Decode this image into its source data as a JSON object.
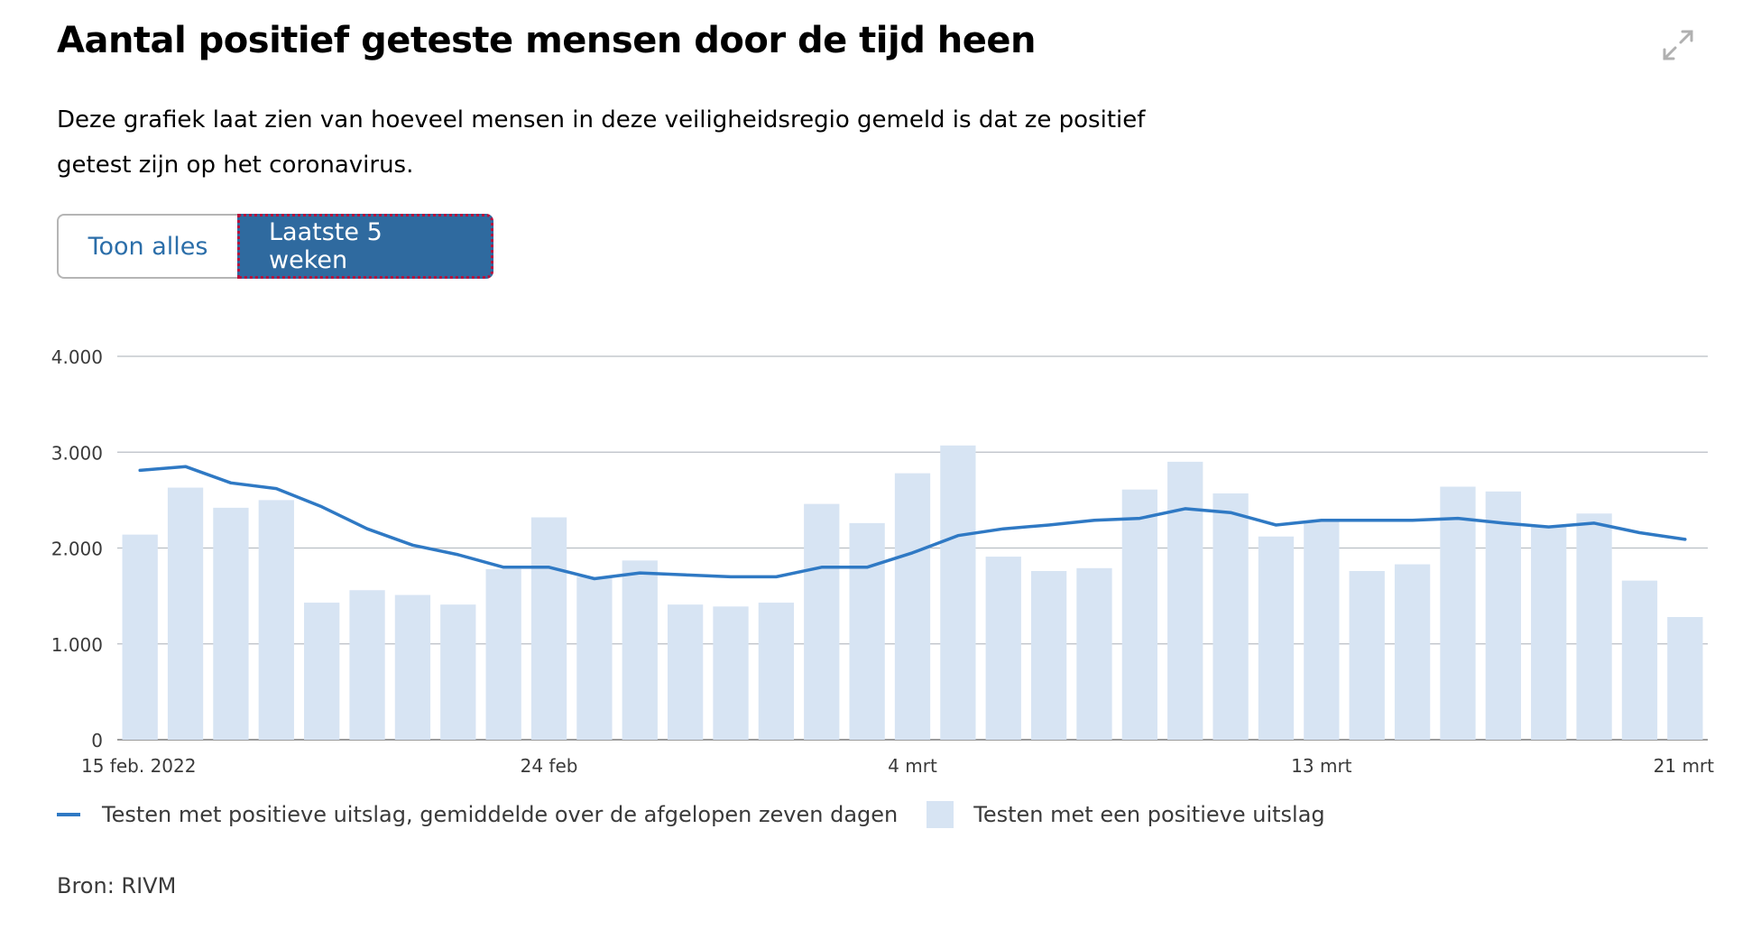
{
  "header": {
    "title": "Aantal positief geteste mensen door de tijd heen",
    "description": "Deze grafiek laat zien van hoeveel mensen in deze veiligheidsregio gemeld is dat ze positief getest zijn op het coronavirus."
  },
  "toggle": {
    "all_label": "Toon alles",
    "recent_label": "Laatste 5 weken",
    "selected": "Laatste 5 weken"
  },
  "icons": {
    "expand": "expand-icon"
  },
  "colors": {
    "accent": "#2f6a9f",
    "line": "#2f79c4",
    "bar": "#d7e4f3",
    "focus": "#b8113c"
  },
  "chart_data": {
    "type": "bar",
    "x_tick_labels": [
      "15 feb. 2022",
      "24 feb",
      "4 mrt",
      "13 mrt",
      "21 mrt"
    ],
    "x_tick_index": [
      0,
      9,
      17,
      26,
      34
    ],
    "y_ticks": [
      "0",
      "1.000",
      "2.000",
      "3.000",
      "4.000"
    ],
    "y_tick_values": [
      0,
      1000,
      2000,
      3000,
      4000
    ],
    "ylim": [
      0,
      4000
    ],
    "grid": true,
    "legend_position": "bottom-left",
    "series": [
      {
        "name": "Testen met een positieve uitslag",
        "type": "bar",
        "values": [
          2140,
          2630,
          2420,
          2500,
          1430,
          1560,
          1510,
          1410,
          1780,
          2320,
          1700,
          1870,
          1410,
          1390,
          1430,
          2460,
          2260,
          2780,
          3070,
          1910,
          1760,
          1790,
          2610,
          2900,
          2570,
          2120,
          2280,
          1760,
          1830,
          2640,
          2590,
          2230,
          2360,
          1660,
          1280
        ]
      },
      {
        "name": "Testen met positieve uitslag, gemiddelde over de afgelopen zeven dagen",
        "type": "line",
        "values": [
          2810,
          2850,
          2680,
          2620,
          2430,
          2200,
          2030,
          1930,
          1800,
          1800,
          1680,
          1740,
          1720,
          1700,
          1700,
          1800,
          1800,
          1950,
          2130,
          2200,
          2240,
          2290,
          2310,
          2410,
          2370,
          2240,
          2290,
          2290,
          2290,
          2310,
          2260,
          2220,
          2260,
          2160,
          2090
        ]
      }
    ]
  },
  "source": "Bron: RIVM"
}
